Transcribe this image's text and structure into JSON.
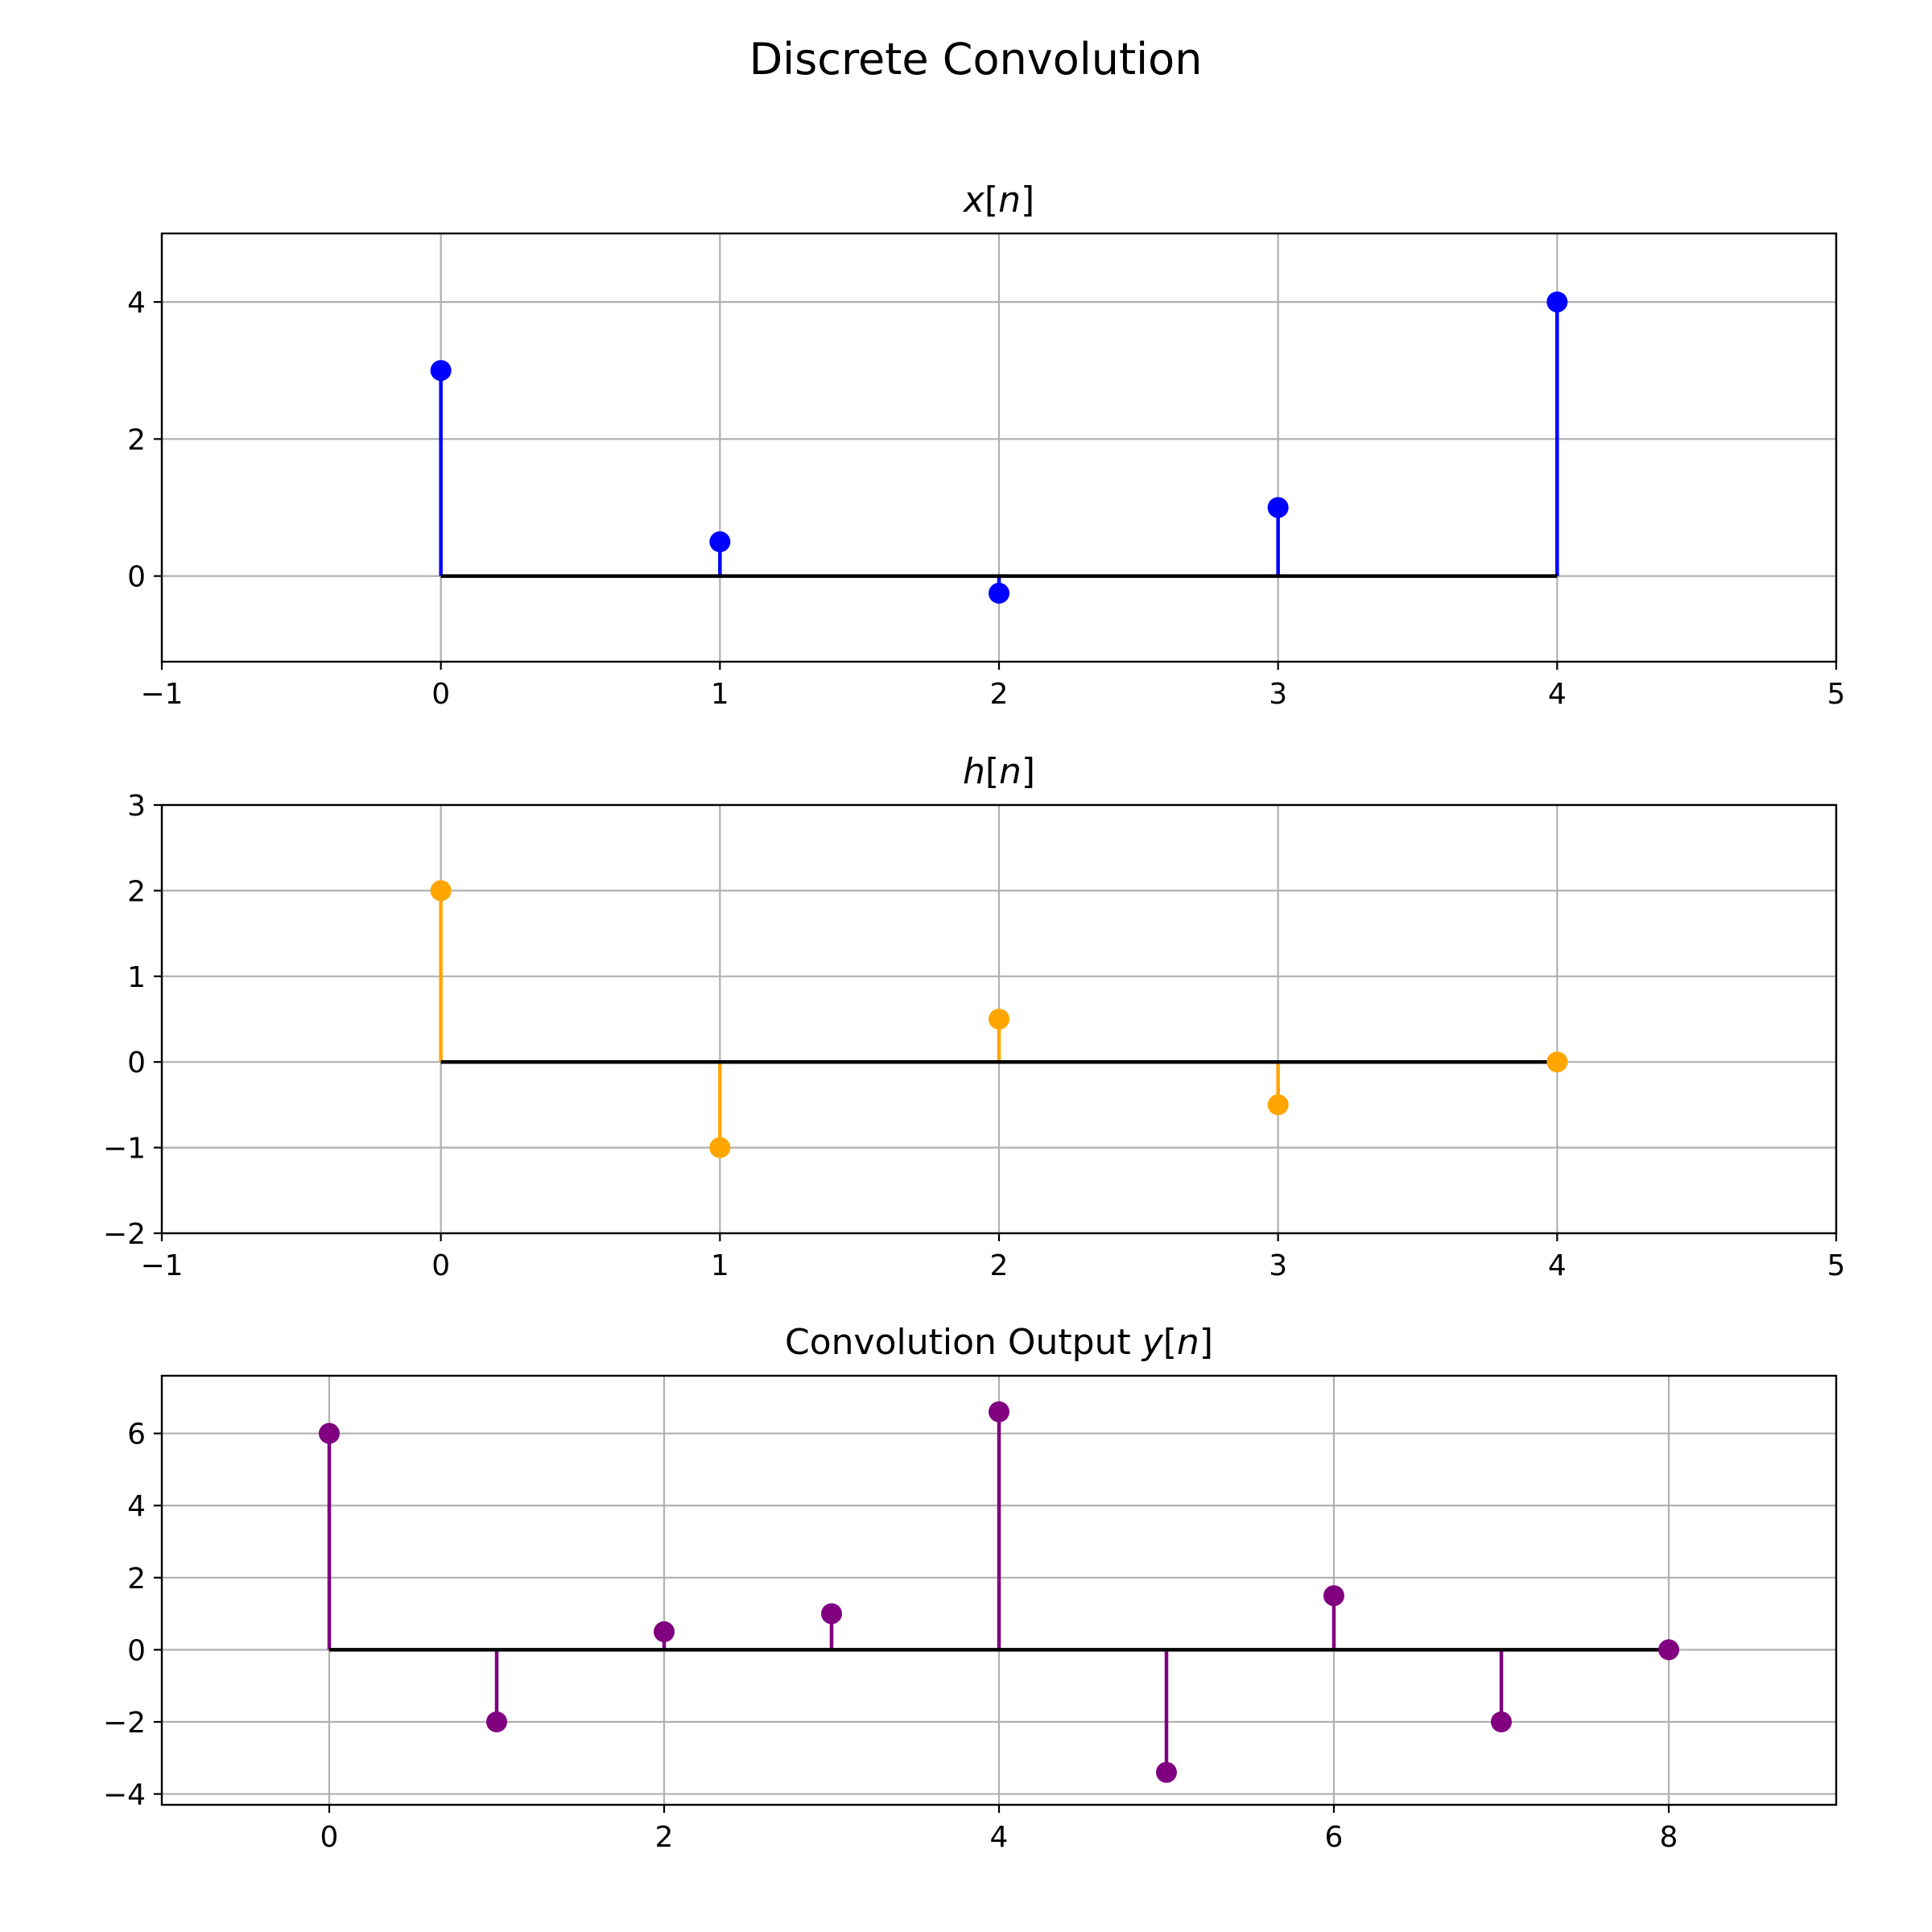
{
  "figure": {
    "suptitle": "Discrete Convolution"
  },
  "chart_data": [
    {
      "type": "stem",
      "title_prefix": "",
      "title_math": "x[n]",
      "xlabel": "",
      "ylabel": "",
      "color": "#0000ff",
      "x": [
        0,
        1,
        2,
        3,
        4
      ],
      "values": [
        3,
        0.5,
        -0.25,
        1,
        4
      ],
      "xlim": [
        -1,
        5
      ],
      "ylim": [
        -1.25,
        5
      ],
      "xticks": [
        -1,
        0,
        1,
        2,
        3,
        4,
        5
      ],
      "yticks": [
        0,
        2,
        4
      ],
      "grid": true
    },
    {
      "type": "stem",
      "title_prefix": "",
      "title_math": "h[n]",
      "xlabel": "",
      "ylabel": "",
      "color": "#ffa500",
      "x": [
        0,
        1,
        2,
        3,
        4
      ],
      "values": [
        2,
        -1,
        0.5,
        -0.5,
        0
      ],
      "xlim": [
        -1,
        5
      ],
      "ylim": [
        -2,
        3
      ],
      "xticks": [
        -1,
        0,
        1,
        2,
        3,
        4,
        5
      ],
      "yticks": [
        -2,
        -1,
        0,
        1,
        2,
        3
      ],
      "grid": true
    },
    {
      "type": "stem",
      "title_prefix": "Convolution Output ",
      "title_math": "y[n]",
      "xlabel": "",
      "ylabel": "",
      "color": "#800080",
      "x": [
        0,
        1,
        2,
        3,
        4,
        5,
        6,
        7,
        8
      ],
      "values": [
        6,
        -2,
        0.5,
        1,
        6.6,
        -3.4,
        1.5,
        -2,
        0
      ],
      "xlim": [
        -1,
        9
      ],
      "ylim": [
        -4.3,
        7.6
      ],
      "xticks": [
        0,
        2,
        4,
        6,
        8
      ],
      "yticks": [
        -4,
        -2,
        0,
        2,
        4,
        6
      ],
      "grid": true
    }
  ]
}
